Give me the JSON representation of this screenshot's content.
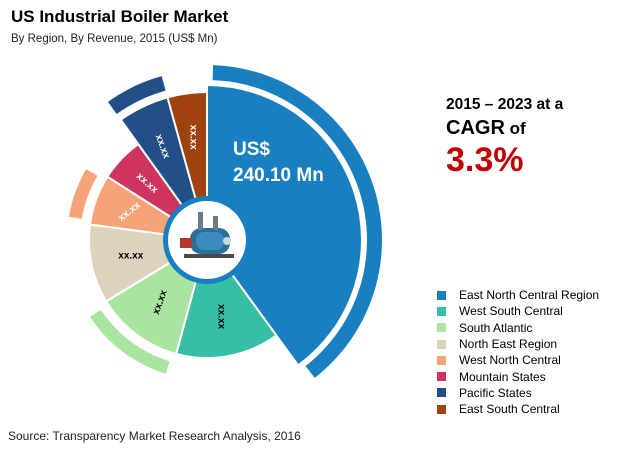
{
  "title": "US Industrial Boiler Market",
  "subtitle": "By Region, By Revenue, 2015 (US$ Mn)",
  "source": "Source: Transparency Market Research Analysis, 2016",
  "cagr": {
    "line1": "2015 – 2023 at a",
    "cagr_word": "CAGR",
    "of_word": " of",
    "value": "3.3%",
    "value_color": "#c00000"
  },
  "center_image": {
    "icon": "industrial-boiler-icon"
  },
  "highlight": {
    "line1": "US$",
    "line2": "240.10 Mn"
  },
  "chart_data": {
    "type": "pie",
    "title": "US Industrial Boiler Market",
    "subtitle": "By Region, By Revenue, 2015 (US$ Mn)",
    "legend_position": "right",
    "slices": [
      {
        "name": "East North Central Region",
        "color": "#1a7fc1",
        "label": "",
        "value": 240.1,
        "share": 0.4
      },
      {
        "name": "West South Central",
        "color": "#36bfa4",
        "label": "xx.xx",
        "share": 0.142
      },
      {
        "name": "South Atlantic",
        "color": "#a9e5a0",
        "label": "xx.xx",
        "share": 0.121
      },
      {
        "name": "North East Region",
        "color": "#ddd2bd",
        "label": "xx.xx",
        "share": 0.108
      },
      {
        "name": "West North Central",
        "color": "#f7a37a",
        "label": "xx.xx",
        "share": 0.069
      },
      {
        "name": "Mountain States",
        "color": "#cf3461",
        "label": "xx.xx",
        "share": 0.061
      },
      {
        "name": "Pacific States",
        "color": "#224f86",
        "label": "xx.xx",
        "share": 0.056
      },
      {
        "name": "East South Central",
        "color": "#a0420f",
        "label": "xx.xx",
        "share": 0.043
      }
    ]
  }
}
